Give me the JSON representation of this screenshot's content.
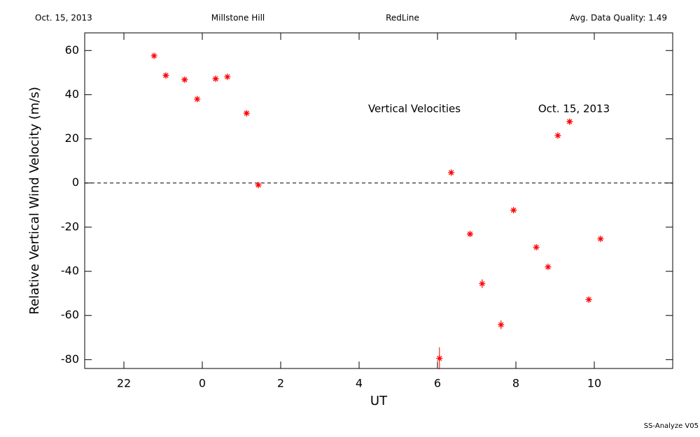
{
  "chart_data": {
    "type": "scatter",
    "header": [
      "Oct. 15, 2013",
      "Millstone Hill",
      "RedLine",
      "Avg. Data Quality: 1.49"
    ],
    "annotations": [
      "Vertical Velocities",
      "Oct. 15, 2013"
    ],
    "footer": "SS-Analyze V05",
    "xlabel": "UT",
    "ylabel": "Relative Vertical Wind Velocity (m/s)",
    "x": [
      -1.23,
      -0.93,
      -0.45,
      -0.13,
      0.34,
      0.64,
      1.13,
      1.43,
      6.05,
      6.35,
      6.83,
      7.14,
      7.62,
      7.94,
      8.52,
      8.82,
      9.07,
      9.37,
      9.86,
      10.16
    ],
    "values": [
      57.6,
      48.7,
      46.8,
      38.0,
      47.2,
      48.1,
      31.6,
      -0.9,
      -79.4,
      4.7,
      -23.1,
      -45.6,
      -64.2,
      -12.3,
      -29.1,
      -38.0,
      21.5,
      27.8,
      -52.8,
      -25.3
    ],
    "errors": [
      1,
      1,
      1,
      1,
      1,
      1,
      1,
      1,
      5,
      1,
      1,
      2,
      2,
      1,
      1,
      1,
      1,
      1,
      1,
      1
    ],
    "color": "#ff0000",
    "xlim": [
      -3,
      12
    ],
    "ylim": [
      -84,
      68
    ],
    "xticks": [
      {
        "value": -2,
        "label": "22"
      },
      0,
      2,
      4,
      6,
      8,
      10
    ],
    "yticks": [
      -80,
      -60,
      -40,
      -20,
      0,
      20,
      40,
      60
    ],
    "hline": 0
  }
}
